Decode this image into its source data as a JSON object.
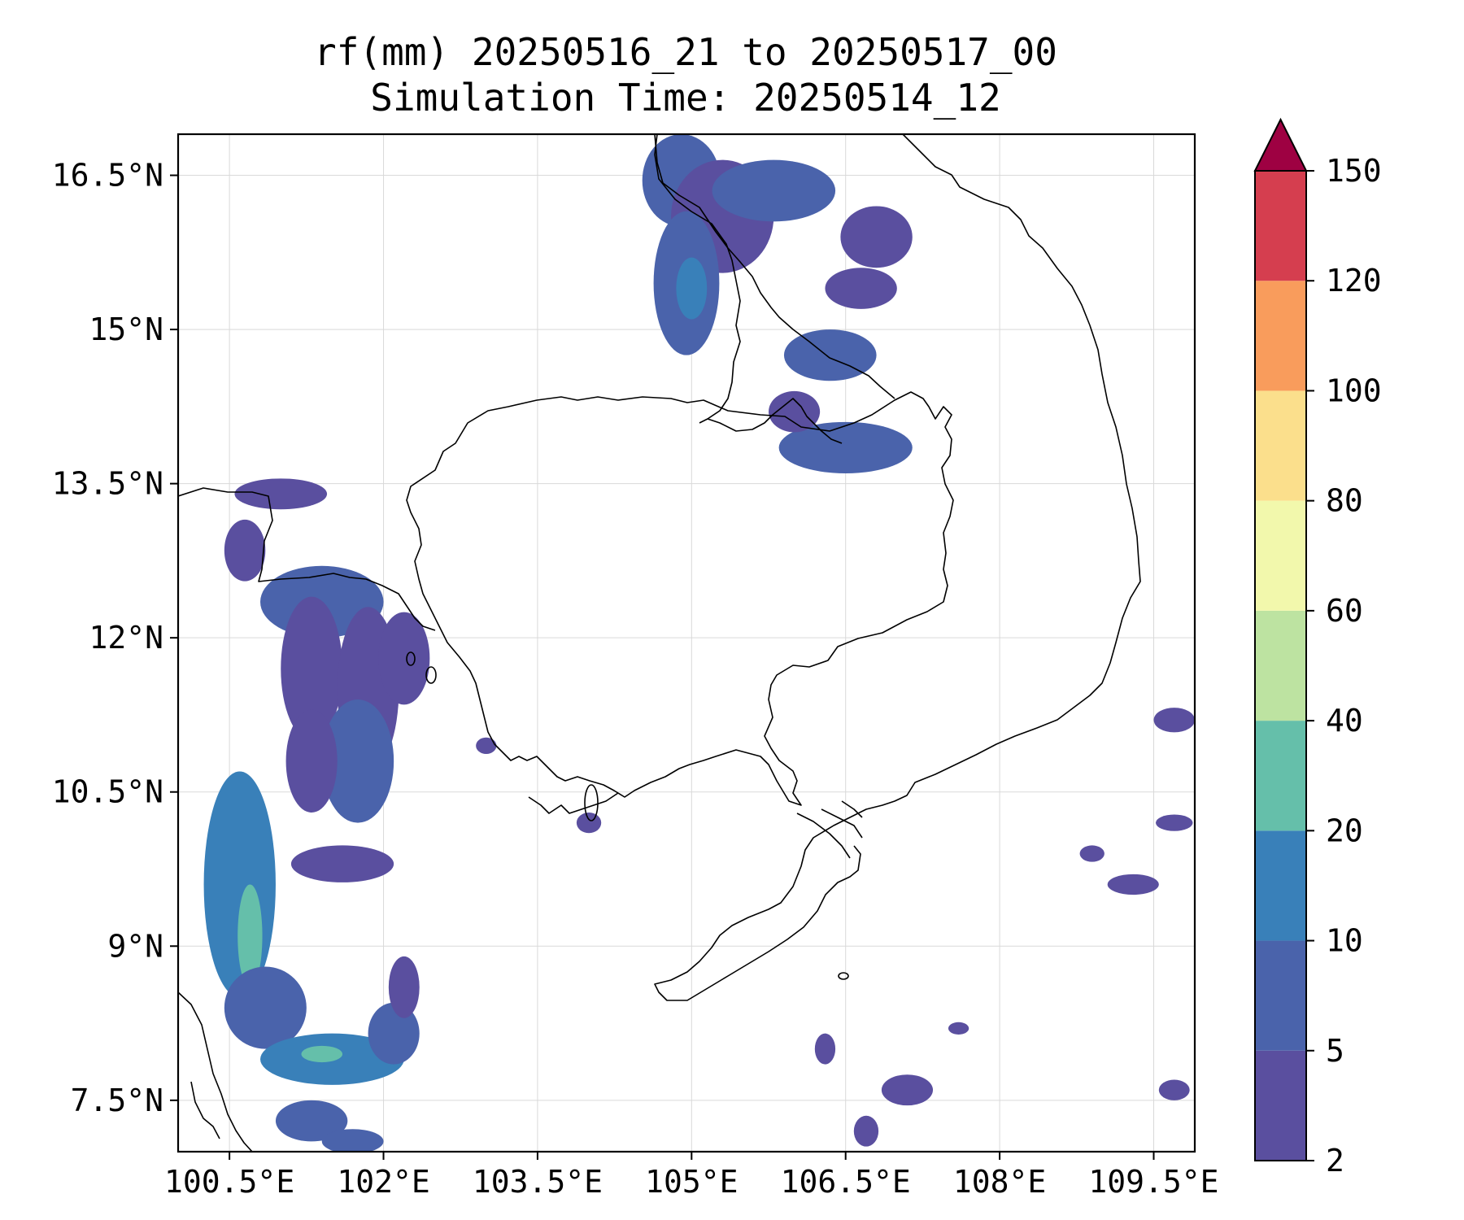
{
  "title": {
    "line1": "rf(mm) 20250516_21 to 20250517_00",
    "line2": "Simulation Time: 20250514_12"
  },
  "map": {
    "lon_range": [
      100.0,
      109.9
    ],
    "lat_range": [
      7.0,
      16.9
    ],
    "gridlines": true,
    "lon_ticks": [
      {
        "value": 100.5,
        "label": "100.5°E"
      },
      {
        "value": 102.0,
        "label": "102°E"
      },
      {
        "value": 103.5,
        "label": "103.5°E"
      },
      {
        "value": 105.0,
        "label": "105°E"
      },
      {
        "value": 106.5,
        "label": "106.5°E"
      },
      {
        "value": 108.0,
        "label": "108°E"
      },
      {
        "value": 109.5,
        "label": "109.5°E"
      }
    ],
    "lat_ticks": [
      {
        "value": 16.5,
        "label": "16.5°N"
      },
      {
        "value": 15.0,
        "label": "15°N"
      },
      {
        "value": 13.5,
        "label": "13.5°N"
      },
      {
        "value": 12.0,
        "label": "12°N"
      },
      {
        "value": 10.5,
        "label": "10.5°N"
      },
      {
        "value": 9.0,
        "label": "9°N"
      },
      {
        "value": 7.5,
        "label": "7.5°N"
      }
    ]
  },
  "colorbar": {
    "levels": [
      2,
      5,
      10,
      20,
      40,
      60,
      80,
      100,
      120,
      150
    ],
    "labels": [
      "2",
      "5",
      "10",
      "20",
      "40",
      "60",
      "80",
      "100",
      "120",
      "150"
    ],
    "colors": [
      "#5a4f9f",
      "#4a63ab",
      "#3980b9",
      "#65bfaa",
      "#bde3a1",
      "#f2f8ac",
      "#fbdf8c",
      "#f99c5c",
      "#d53e4f"
    ],
    "extend_color": "#9e0142"
  },
  "colors": {
    "coast": "#000000",
    "frame": "#000000",
    "grid": "#d9d9d9"
  },
  "rain_cells": [
    {
      "lon": 104.9,
      "lat": 16.45,
      "rx": 0.38,
      "ry": 0.45,
      "level": 1
    },
    {
      "lon": 105.3,
      "lat": 16.1,
      "rx": 0.5,
      "ry": 0.55,
      "level": 0
    },
    {
      "lon": 105.8,
      "lat": 16.35,
      "rx": 0.6,
      "ry": 0.3,
      "level": 1
    },
    {
      "lon": 104.95,
      "lat": 15.45,
      "rx": 0.32,
      "ry": 0.7,
      "level": 1
    },
    {
      "lon": 105.0,
      "lat": 15.4,
      "rx": 0.15,
      "ry": 0.3,
      "level": 2
    },
    {
      "lon": 106.8,
      "lat": 15.9,
      "rx": 0.35,
      "ry": 0.3,
      "level": 0
    },
    {
      "lon": 106.65,
      "lat": 15.4,
      "rx": 0.35,
      "ry": 0.2,
      "level": 0
    },
    {
      "lon": 106.35,
      "lat": 14.75,
      "rx": 0.45,
      "ry": 0.25,
      "level": 1
    },
    {
      "lon": 106.5,
      "lat": 13.85,
      "rx": 0.65,
      "ry": 0.25,
      "level": 1
    },
    {
      "lon": 106.0,
      "lat": 14.2,
      "rx": 0.25,
      "ry": 0.2,
      "level": 0
    },
    {
      "lon": 101.0,
      "lat": 13.4,
      "rx": 0.45,
      "ry": 0.15,
      "level": 0
    },
    {
      "lon": 100.65,
      "lat": 12.85,
      "rx": 0.2,
      "ry": 0.3,
      "level": 0
    },
    {
      "lon": 101.4,
      "lat": 12.35,
      "rx": 0.6,
      "ry": 0.35,
      "level": 1
    },
    {
      "lon": 101.3,
      "lat": 11.7,
      "rx": 0.3,
      "ry": 0.7,
      "level": 0
    },
    {
      "lon": 101.85,
      "lat": 11.5,
      "rx": 0.3,
      "ry": 0.8,
      "level": 0
    },
    {
      "lon": 102.2,
      "lat": 11.8,
      "rx": 0.25,
      "ry": 0.45,
      "level": 0
    },
    {
      "lon": 101.75,
      "lat": 10.8,
      "rx": 0.35,
      "ry": 0.6,
      "level": 1
    },
    {
      "lon": 101.3,
      "lat": 10.8,
      "rx": 0.25,
      "ry": 0.5,
      "level": 0
    },
    {
      "lon": 100.6,
      "lat": 9.6,
      "rx": 0.35,
      "ry": 1.1,
      "level": 2
    },
    {
      "lon": 100.7,
      "lat": 9.1,
      "rx": 0.12,
      "ry": 0.5,
      "level": 3
    },
    {
      "lon": 100.85,
      "lat": 8.4,
      "rx": 0.4,
      "ry": 0.4,
      "level": 1
    },
    {
      "lon": 101.5,
      "lat": 7.9,
      "rx": 0.7,
      "ry": 0.25,
      "level": 2
    },
    {
      "lon": 101.4,
      "lat": 7.95,
      "rx": 0.2,
      "ry": 0.08,
      "level": 3
    },
    {
      "lon": 102.1,
      "lat": 8.15,
      "rx": 0.25,
      "ry": 0.3,
      "level": 1
    },
    {
      "lon": 102.2,
      "lat": 8.6,
      "rx": 0.15,
      "ry": 0.3,
      "level": 0
    },
    {
      "lon": 101.6,
      "lat": 9.8,
      "rx": 0.5,
      "ry": 0.18,
      "level": 0
    },
    {
      "lon": 101.3,
      "lat": 7.3,
      "rx": 0.35,
      "ry": 0.2,
      "level": 1
    },
    {
      "lon": 101.7,
      "lat": 7.1,
      "rx": 0.3,
      "ry": 0.12,
      "level": 1
    },
    {
      "lon": 109.7,
      "lat": 11.2,
      "rx": 0.2,
      "ry": 0.12,
      "level": 0
    },
    {
      "lon": 109.7,
      "lat": 10.2,
      "rx": 0.18,
      "ry": 0.08,
      "level": 0
    },
    {
      "lon": 109.3,
      "lat": 9.6,
      "rx": 0.25,
      "ry": 0.1,
      "level": 0
    },
    {
      "lon": 108.9,
      "lat": 9.9,
      "rx": 0.12,
      "ry": 0.08,
      "level": 0
    },
    {
      "lon": 107.1,
      "lat": 7.6,
      "rx": 0.25,
      "ry": 0.15,
      "level": 0
    },
    {
      "lon": 106.7,
      "lat": 7.2,
      "rx": 0.12,
      "ry": 0.15,
      "level": 0
    },
    {
      "lon": 109.7,
      "lat": 7.6,
      "rx": 0.15,
      "ry": 0.1,
      "level": 0
    },
    {
      "lon": 103.0,
      "lat": 10.95,
      "rx": 0.1,
      "ry": 0.08,
      "level": 0
    },
    {
      "lon": 104.0,
      "lat": 10.2,
      "rx": 0.12,
      "ry": 0.1,
      "level": 0
    },
    {
      "lon": 106.3,
      "lat": 8.0,
      "rx": 0.1,
      "ry": 0.15,
      "level": 0
    },
    {
      "lon": 107.6,
      "lat": 8.2,
      "rx": 0.1,
      "ry": 0.06,
      "level": 0
    }
  ]
}
